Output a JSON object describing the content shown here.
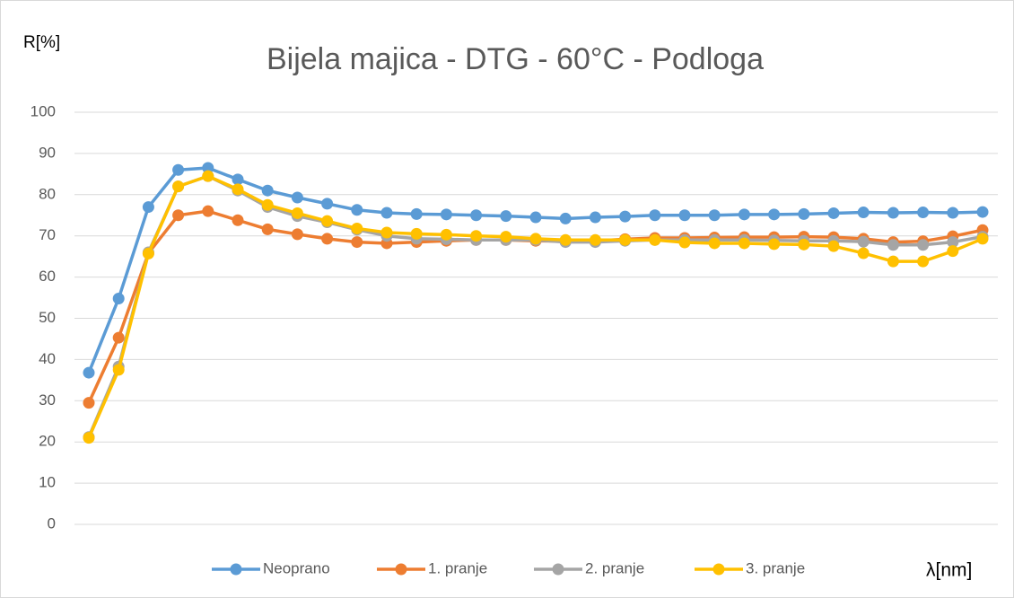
{
  "chart_data": {
    "type": "line",
    "title": "Bijela majica - DTG - 60°C - Podloga",
    "y_label": "R[%]",
    "x_label": "λ[nm]",
    "ylim": [
      0,
      100
    ],
    "yticks": [
      0,
      10,
      20,
      30,
      40,
      50,
      60,
      70,
      80,
      90,
      100
    ],
    "grid": true,
    "legend": "bottom",
    "series": [
      {
        "name": "Neoprano",
        "color": "#5b9bd5",
        "values": [
          36.8,
          54.8,
          77,
          86,
          86.5,
          83.7,
          81,
          79.3,
          77.8,
          76.3,
          75.6,
          75.3,
          75.2,
          75,
          74.8,
          74.5,
          74.2,
          74.5,
          74.7,
          75,
          75,
          75,
          75.2,
          75.2,
          75.3,
          75.5,
          75.7,
          75.6,
          75.7,
          75.6,
          75.8
        ]
      },
      {
        "name": "1. pranje",
        "color": "#ed7d31",
        "values": [
          29.5,
          45.3,
          65.8,
          75,
          76,
          73.8,
          71.6,
          70.4,
          69.3,
          68.5,
          68.2,
          68.5,
          68.8,
          69,
          69,
          68.8,
          68.7,
          68.8,
          69.2,
          69.5,
          69.5,
          69.6,
          69.7,
          69.7,
          69.8,
          69.7,
          69.3,
          68.5,
          68.7,
          69.9,
          71.4
        ]
      },
      {
        "name": "2. pranje",
        "color": "#a5a5a5",
        "values": [
          21.2,
          38.3,
          66,
          82,
          84.5,
          81,
          77,
          74.8,
          73.3,
          71.5,
          70,
          69.3,
          69.2,
          69,
          69,
          69,
          68.5,
          68.5,
          68.8,
          69,
          69,
          69,
          69,
          68.9,
          68.8,
          68.8,
          68.6,
          67.8,
          67.8,
          68.5,
          69.8
        ]
      },
      {
        "name": "3. pranje",
        "color": "#ffc000",
        "values": [
          21,
          37.5,
          65.7,
          82,
          84.5,
          81.3,
          77.5,
          75.5,
          73.6,
          71.8,
          70.8,
          70.5,
          70.3,
          70,
          69.8,
          69.3,
          69,
          69,
          69,
          69,
          68.4,
          68.2,
          68.2,
          68,
          67.9,
          67.5,
          65.8,
          63.8,
          63.8,
          66.3,
          69.3
        ]
      }
    ]
  }
}
